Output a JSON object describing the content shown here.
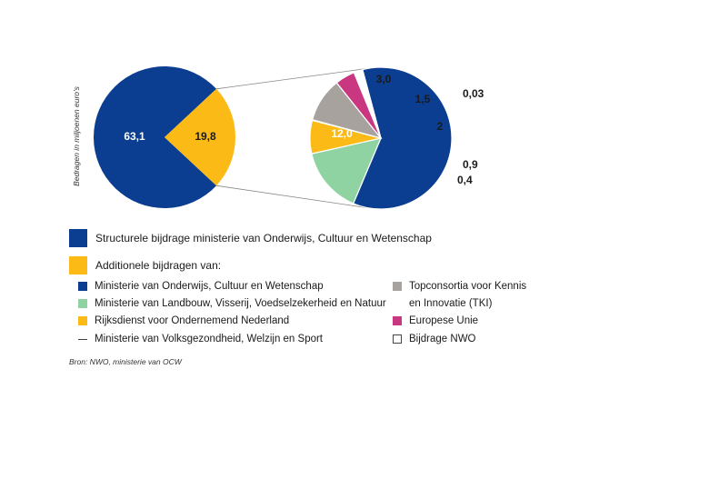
{
  "chart_data": {
    "type": "pie",
    "ylabel": "Bedragen in miljoenen euro's",
    "source": "Bron: NWO, ministerie van OCW",
    "main_pie": {
      "slices": [
        {
          "key": "structureel",
          "value": 63.1,
          "label": "63,1",
          "color": "#0B3D91"
        },
        {
          "key": "additioneel",
          "value": 19.8,
          "label": "19,8",
          "color": "#FBBA16"
        }
      ]
    },
    "detail_pie": {
      "slices": [
        {
          "key": "ocw",
          "value": 12.0,
          "label": "12,0",
          "color": "#0B3D91"
        },
        {
          "key": "lnv",
          "value": 3.0,
          "label": "3,0",
          "color": "#8FD3A3"
        },
        {
          "key": "rvo",
          "value": 1.5,
          "label": "1,5",
          "color": "#FBBA16"
        },
        {
          "key": "vws",
          "value": 0.03,
          "label": "0,03",
          "color": "#ffffff"
        },
        {
          "key": "tki",
          "value": 2,
          "label": "2",
          "color": "#A8A29E"
        },
        {
          "key": "eu",
          "value": 0.9,
          "label": "0,9",
          "color": "#C8377F"
        },
        {
          "key": "nwo",
          "value": 0.4,
          "label": "0,4",
          "color": "#ffffff"
        }
      ]
    }
  },
  "legend": {
    "structureel": {
      "label": "Structurele bijdrage ministerie van Onderwijs, Cultuur en Wetenschap",
      "color": "#0B3D91"
    },
    "additioneel": {
      "label": "Additionele bijdragen van:",
      "color": "#FBBA16"
    },
    "ocw": {
      "label": "Ministerie van Onderwijs, Cultuur en Wetenschap",
      "color": "#0B3D91"
    },
    "lnv": {
      "label": "Ministerie van Landbouw, Visserij, Voedselzekerheid en Natuur",
      "color": "#8FD3A3"
    },
    "rvo": {
      "label": "Rijksdienst voor Ondernemend Nederland",
      "color": "#FBBA16"
    },
    "vws": {
      "label": "Ministerie van Volksgezondheid, Welzijn en Sport"
    },
    "tki": {
      "line1": "Topconsortia voor Kennis",
      "line2": "en Innovatie (TKI)",
      "color": "#A8A29E"
    },
    "eu": {
      "label": "Europese Unie",
      "color": "#C8377F"
    },
    "nwo": {
      "label": "Bijdrage NWO",
      "color": "#ffffff"
    }
  }
}
